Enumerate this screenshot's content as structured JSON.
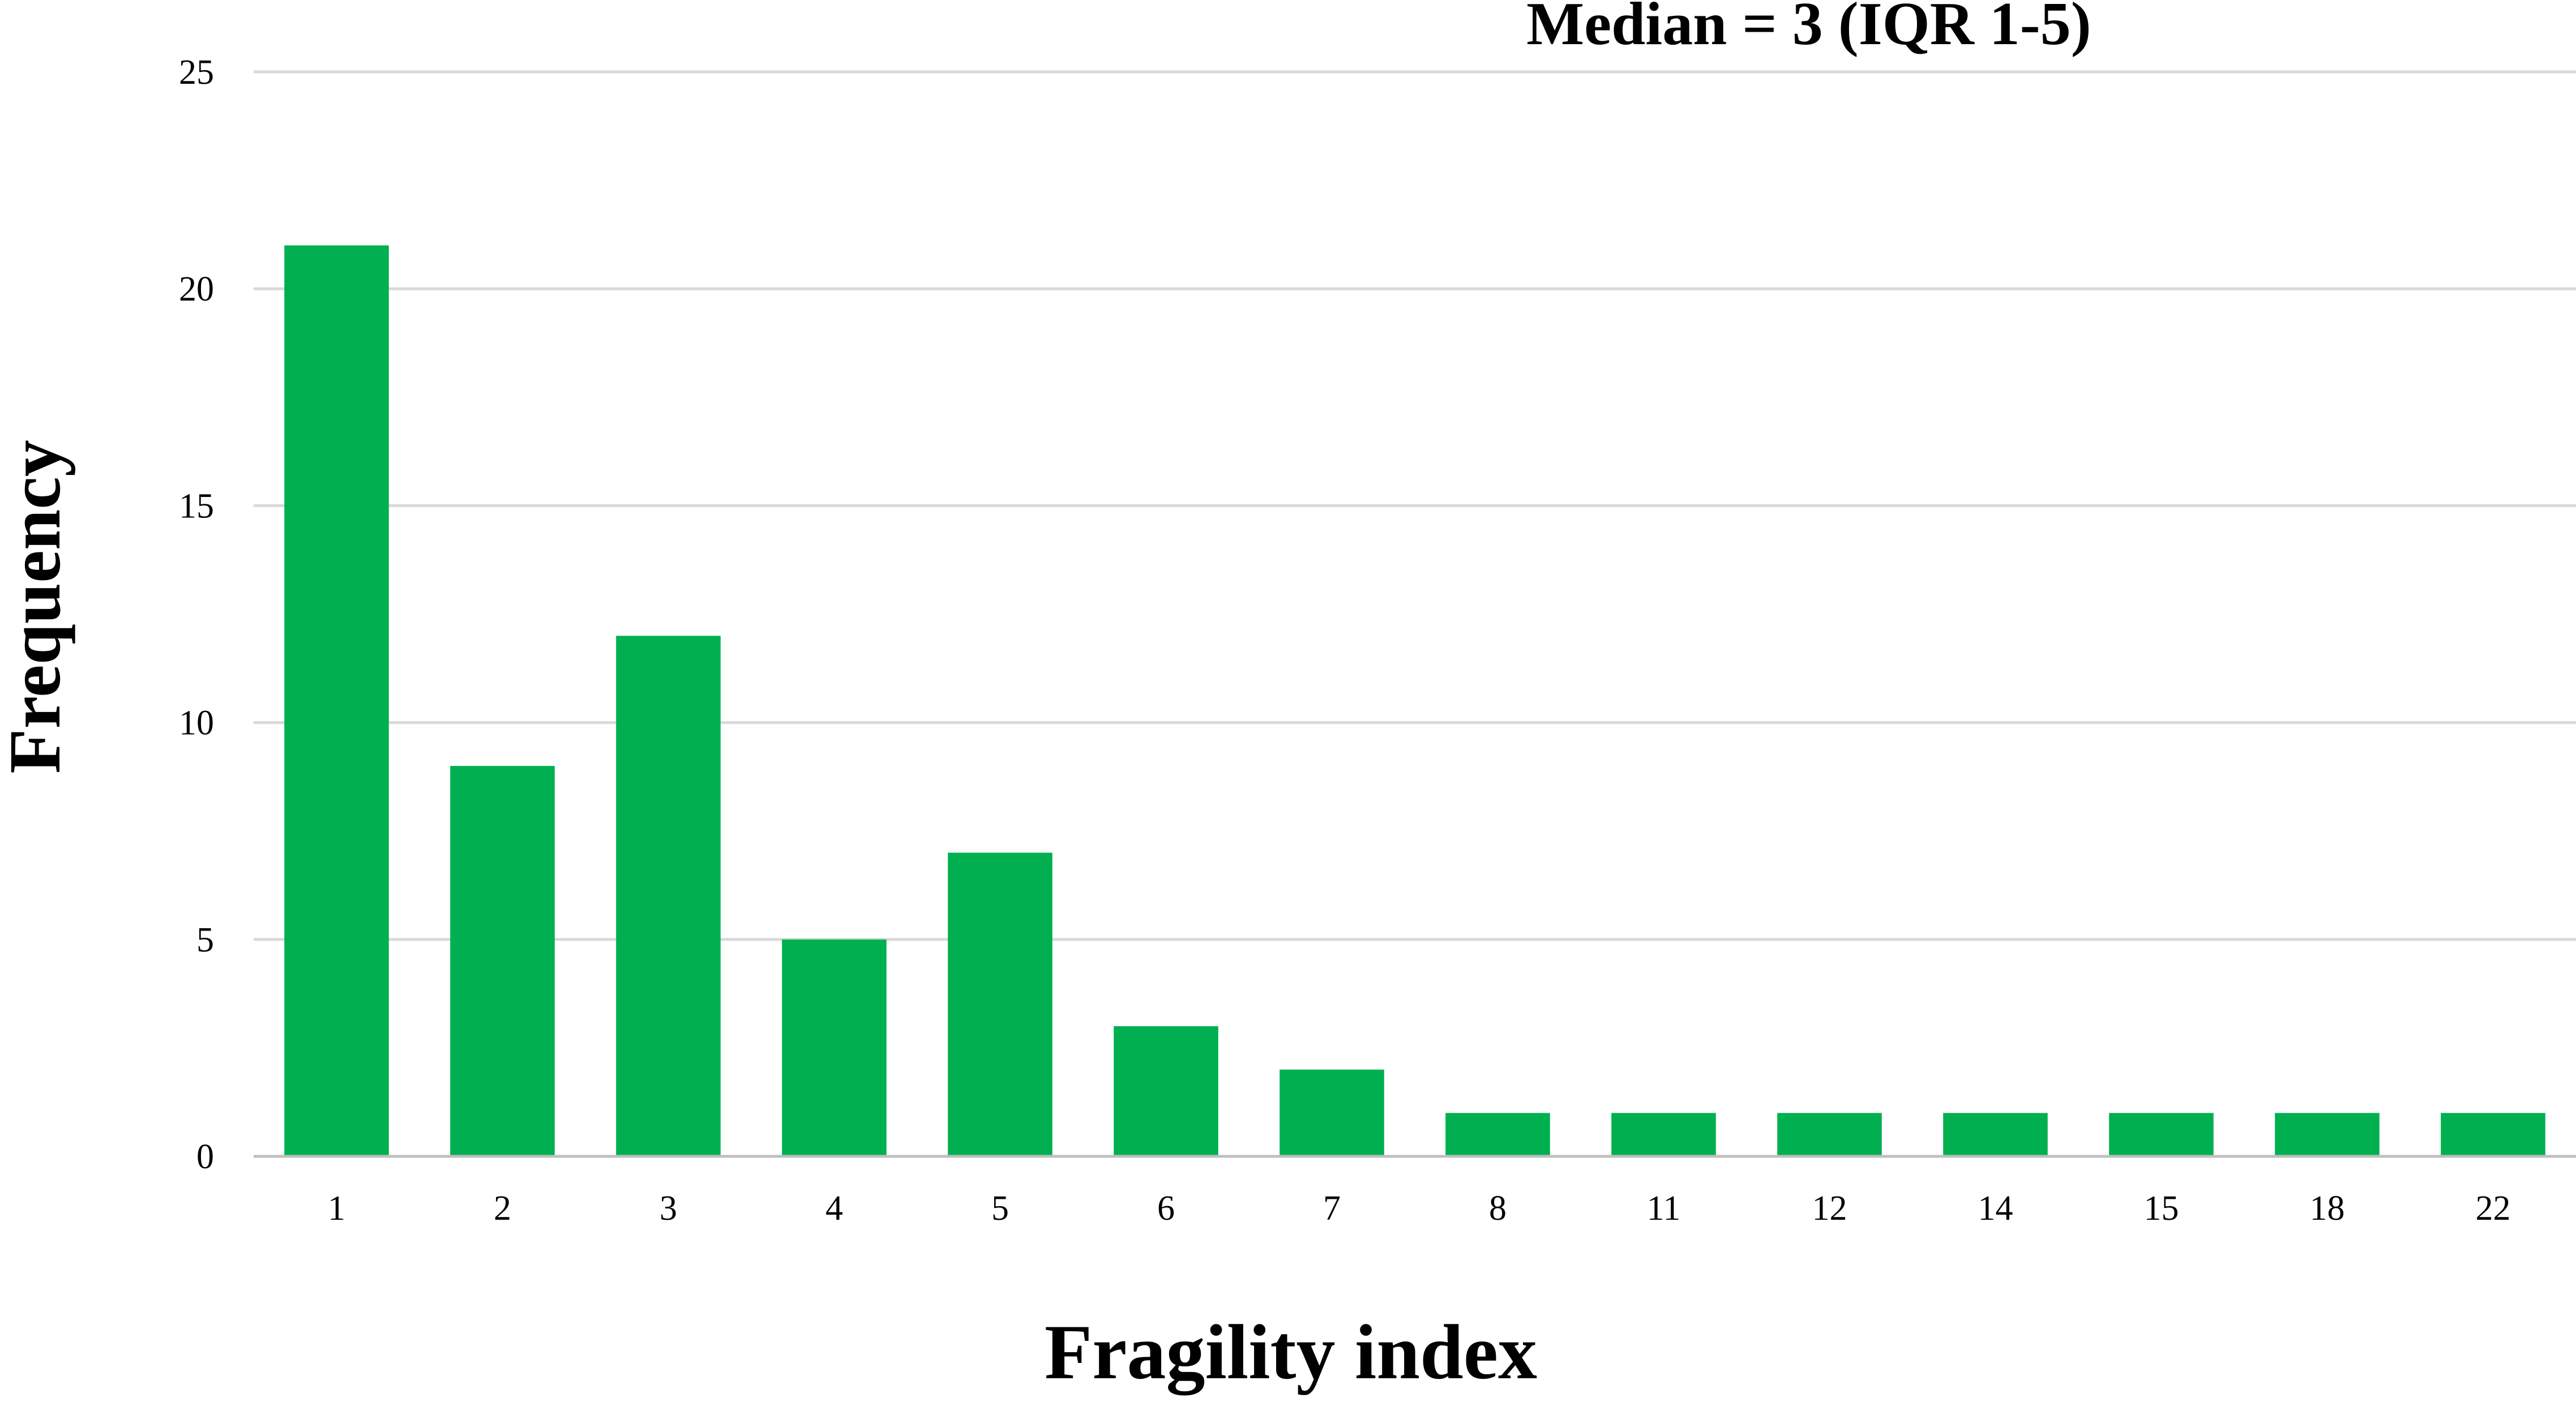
{
  "chart_data": {
    "type": "bar",
    "title": "",
    "annotation": "Median = 3 (IQR 1-5)",
    "xlabel": "Fragility index",
    "ylabel": "Frequency",
    "categories": [
      "1",
      "2",
      "3",
      "4",
      "5",
      "6",
      "7",
      "8",
      "11",
      "12",
      "14",
      "15",
      "18",
      "22"
    ],
    "values": [
      21,
      9,
      12,
      5,
      7,
      3,
      2,
      1,
      1,
      1,
      1,
      1,
      1,
      1
    ],
    "yticks": [
      "0",
      "5",
      "10",
      "15",
      "20",
      "25"
    ],
    "ylim": [
      0,
      25
    ],
    "grid": true,
    "legend": "none",
    "colors": {
      "bar": "#00B050",
      "grid": "#D9D9D9",
      "axis": "#BFBFBF"
    }
  }
}
